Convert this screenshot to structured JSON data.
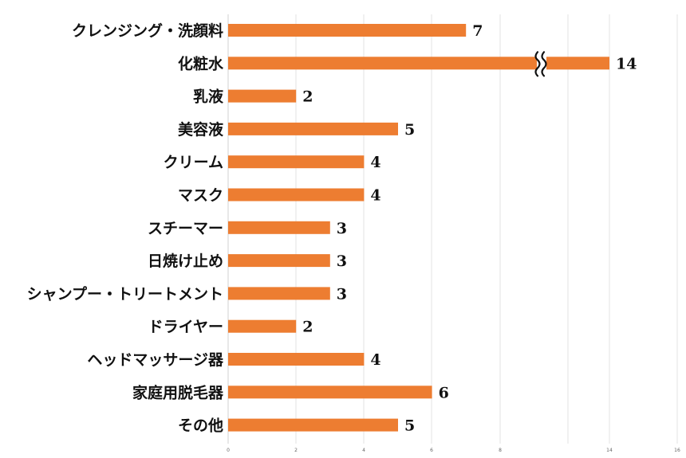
{
  "chart_data": {
    "type": "bar",
    "orientation": "horizontal",
    "categories": [
      "クレンジング・洗顔料",
      "化粧水",
      "乳液",
      "美容液",
      "クリーム",
      "マスク",
      "スチーマー",
      "日焼け止め",
      "シャンプー・トリートメント",
      "ドライヤー",
      "ヘッドマッサージ器",
      "家庭用脱毛器",
      "その他"
    ],
    "values": [
      7,
      14,
      2,
      5,
      4,
      4,
      3,
      3,
      3,
      2,
      4,
      6,
      5
    ],
    "value_labels": [
      "7",
      "14",
      "2",
      "5",
      "4",
      "4",
      "3",
      "3",
      "3",
      "2",
      "4",
      "6",
      "5"
    ],
    "axis_break": {
      "category": "化粧水",
      "after_value": 9.2,
      "resumes_at": 14
    },
    "x_ticks": [
      "0",
      "2",
      "4",
      "6",
      "8",
      "",
      "14",
      "16"
    ],
    "xlim": [
      0,
      16
    ],
    "grid": true,
    "bar_color": "#ED7D31",
    "title": "",
    "xlabel": "",
    "ylabel": ""
  }
}
